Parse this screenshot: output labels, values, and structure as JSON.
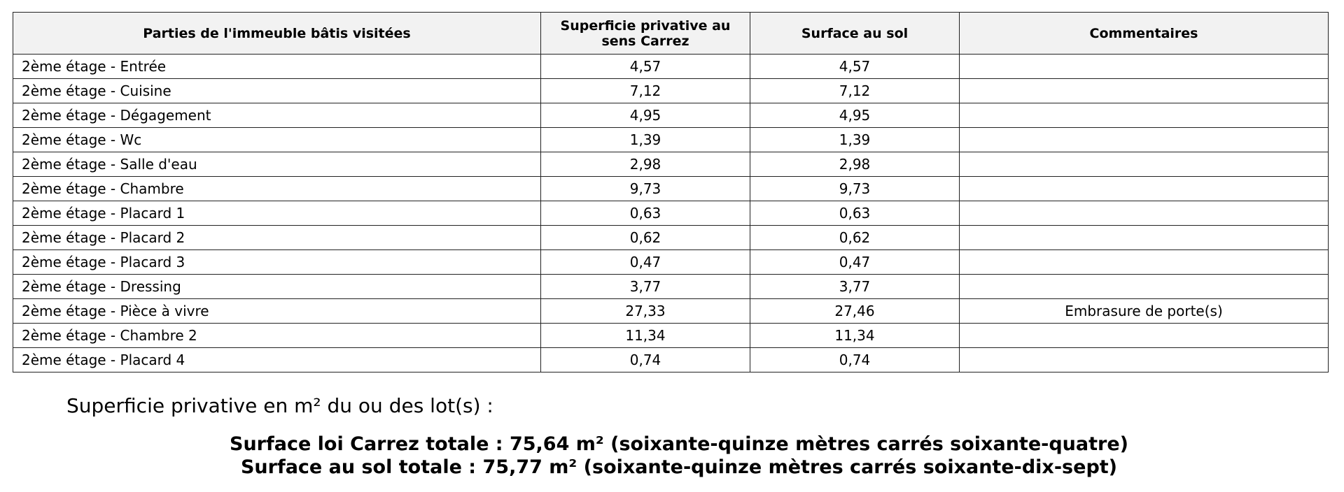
{
  "table": {
    "header": [
      "Parties de l'immeuble bâtis visitées",
      "Superficie privative au sens Carrez",
      "Surface au sol",
      "Commentaires"
    ],
    "rows": [
      {
        "label": "2ème étage - Entrée",
        "carrez": "4,57",
        "sol": "4,57"
      },
      {
        "label": "2ème étage - Cuisine",
        "carrez": "7,12",
        "sol": "7,12"
      },
      {
        "label": "2ème étage - Dégagement",
        "carrez": "4,95",
        "sol": "4,95"
      },
      {
        "label": "2ème étage - Wc",
        "carrez": "1,39",
        "sol": "1,39"
      },
      {
        "label": "2ème étage - Salle d'eau",
        "carrez": "2,98",
        "sol": "2,98"
      },
      {
        "label": "2ème étage - Chambre",
        "carrez": "9,73",
        "sol": "9,73"
      },
      {
        "label": "2ème étage - Placard 1",
        "carrez": "0,63",
        "sol": "0,63"
      },
      {
        "label": "2ème étage - Placard 2",
        "carrez": "0,62",
        "sol": "0,62"
      },
      {
        "label": "2ème étage - Placard 3",
        "carrez": "0,47",
        "sol": "0,47"
      },
      {
        "label": "2ème étage - Dressing",
        "carrez": "3,77",
        "sol": "3,77"
      },
      {
        "label": "2ème étage - Pièce à vivre",
        "carrez": "27,33",
        "sol": "27,46",
        "comment": "Embrasure de porte(s)"
      },
      {
        "label": "2ème étage - Chambre 2",
        "carrez": "11,34",
        "sol": "11,34"
      },
      {
        "label": "2ème étage - Placard 4",
        "carrez": "0,74",
        "sol": "0,74"
      }
    ]
  },
  "summary": {
    "intro": "Superficie privative en m² du ou des lot(s) :",
    "carrez_total": "Surface loi Carrez totale : 75,64 m² (soixante-quinze mètres carrés soixante-quatre)",
    "sol_total": "Surface au sol totale : 75,77 m² (soixante-quinze mètres carrés soixante-dix-sept)"
  }
}
